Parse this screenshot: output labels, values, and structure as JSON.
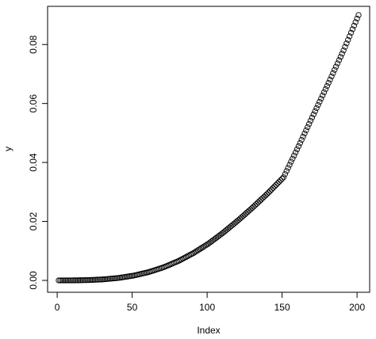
{
  "chart_data": {
    "type": "scatter",
    "title": "",
    "xlabel": "Index",
    "ylabel": "y",
    "xlim": [
      1,
      201
    ],
    "ylim": [
      0,
      0.09
    ],
    "x_ticks": [
      0,
      50,
      100,
      150,
      200
    ],
    "x_tick_labels": [
      "0",
      "50",
      "100",
      "150",
      "200"
    ],
    "y_ticks": [
      0,
      0.02,
      0.04,
      0.06,
      0.08
    ],
    "y_tick_labels": [
      "0.00",
      "0.02",
      "0.04",
      "0.06",
      "0.08"
    ],
    "grid": false,
    "marker": "open-circle",
    "marker_color": "#000000",
    "series": [
      {
        "description": "y values at each index (1..201), estimated from the plotted points",
        "x": [
          1,
          11,
          21,
          31,
          41,
          51,
          61,
          71,
          81,
          91,
          101,
          111,
          121,
          131,
          141,
          151,
          161,
          171,
          181,
          191,
          201
        ],
        "values": [
          0.0,
          1e-05,
          0.0001,
          0.00035,
          0.00083,
          0.00162,
          0.0028,
          0.00445,
          0.0066,
          0.0093,
          0.0125,
          0.0163,
          0.0205,
          0.025,
          0.0298,
          0.035,
          0.0455,
          0.0563,
          0.067,
          0.078,
          0.09
        ]
      }
    ]
  }
}
